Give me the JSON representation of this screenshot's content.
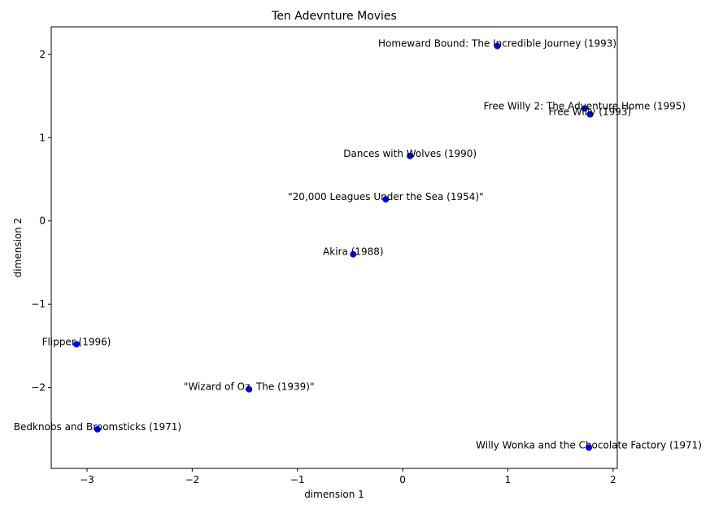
{
  "chart_data": {
    "type": "scatter",
    "title": "Ten Adevnture Movies",
    "xlabel": "dimension 1",
    "ylabel": "dimension 2",
    "xlim": [
      -3.34,
      2.04
    ],
    "ylim": [
      -2.97,
      2.33
    ],
    "xticks": [
      -3,
      -2,
      -1,
      0,
      1,
      2
    ],
    "yticks": [
      -2,
      -1,
      0,
      1,
      2
    ],
    "grid": false,
    "marker_color": "#0000ff",
    "points": [
      {
        "label": "Homeward Bound: The Incredible Journey (1993)",
        "x": 0.9,
        "y": 2.1
      },
      {
        "label": "Free Willy 2: The Adventure Home (1995)",
        "x": 1.73,
        "y": 1.35
      },
      {
        "label": "Free Willy (1993)",
        "x": 1.78,
        "y": 1.28
      },
      {
        "label": "Dances with Wolves (1990)",
        "x": 0.07,
        "y": 0.78
      },
      {
        "label": "\"20,000 Leagues Under the Sea (1954)\"",
        "x": -0.16,
        "y": 0.26
      },
      {
        "label": "Akira (1988)",
        "x": -0.47,
        "y": -0.4
      },
      {
        "label": "Flipper (1996)",
        "x": -3.1,
        "y": -1.48
      },
      {
        "label": "\"Wizard of Oz, The (1939)\"",
        "x": -1.46,
        "y": -2.02
      },
      {
        "label": "Bedknobs and Broomsticks (1971)",
        "x": -2.9,
        "y": -2.5
      },
      {
        "label": "Willy Wonka and the Chocolate Factory (1971)",
        "x": 1.77,
        "y": -2.72
      }
    ]
  }
}
